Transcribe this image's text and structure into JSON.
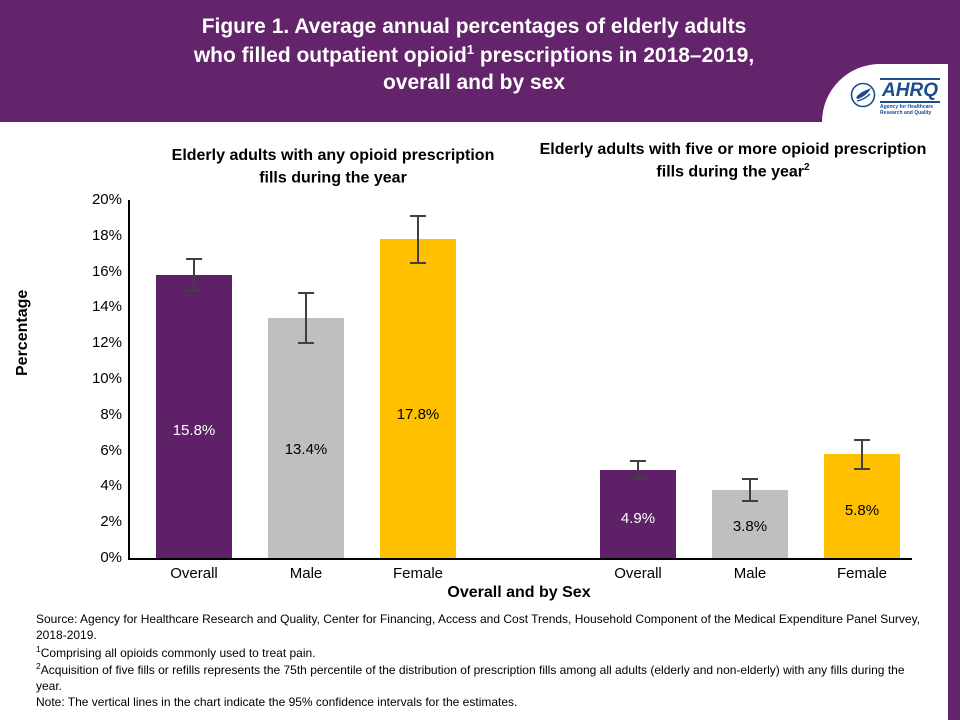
{
  "header": {
    "line1": "Figure 1. Average annual percentages of elderly adults",
    "line2_pre": "who filled outpatient opioid",
    "line2_sup": "1",
    "line2_post": " prescriptions in 2018–2019,",
    "line3": "overall and by sex"
  },
  "logo": {
    "acronym": "AHRQ",
    "tagline": "Agency for Healthcare Research and Quality"
  },
  "chart_data": {
    "type": "bar",
    "title": "Figure 1. Average annual percentages of elderly adults who filled outpatient opioid prescriptions in 2018–2019, overall and by sex",
    "xlabel": "Overall and by Sex",
    "ylabel": "Percentage",
    "ylim": [
      0,
      20
    ],
    "ytick_step": 2,
    "ytick_labels": [
      "0%",
      "2%",
      "4%",
      "6%",
      "8%",
      "10%",
      "12%",
      "14%",
      "16%",
      "18%",
      "20%"
    ],
    "grid": false,
    "legend": "none",
    "categories": [
      "Overall",
      "Male",
      "Female"
    ],
    "bar_colors": [
      "#5e2167",
      "#bfbfbf",
      "#ffc000"
    ],
    "label_colors": [
      "#ffffff",
      "#000000",
      "#000000"
    ],
    "error_bar_note": "vertical lines indicate 95% confidence intervals",
    "groups": [
      {
        "title": "Elderly adults with any opioid prescription fills during the year",
        "title_sup": "",
        "values": [
          15.8,
          13.4,
          17.8
        ],
        "labels": [
          "15.8%",
          "13.4%",
          "17.8%"
        ],
        "ci_half": [
          0.9,
          1.4,
          1.3
        ]
      },
      {
        "title": "Elderly adults with five or more opioid prescription fills during the year",
        "title_sup": "2",
        "values": [
          4.9,
          3.8,
          5.8
        ],
        "labels": [
          "4.9%",
          "3.8%",
          "5.8%"
        ],
        "ci_half": [
          0.5,
          0.6,
          0.8
        ]
      }
    ]
  },
  "footnotes": [
    {
      "sup": "",
      "text": "Source: Agency for Healthcare Research and Quality, Center for Financing, Access and Cost Trends, Household Component of the Medical Expenditure Panel Survey, 2018-2019."
    },
    {
      "sup": "1",
      "text": "Comprising all opioids commonly used to treat pain."
    },
    {
      "sup": "2",
      "text": "Acquisition of five fills or refills represents the 75th percentile of the distribution of prescription fills among all adults (elderly and non-elderly) with any fills during the year."
    },
    {
      "sup": "",
      "text": "Note: The vertical lines in the chart indicate the 95% confidence intervals for the estimates."
    }
  ]
}
